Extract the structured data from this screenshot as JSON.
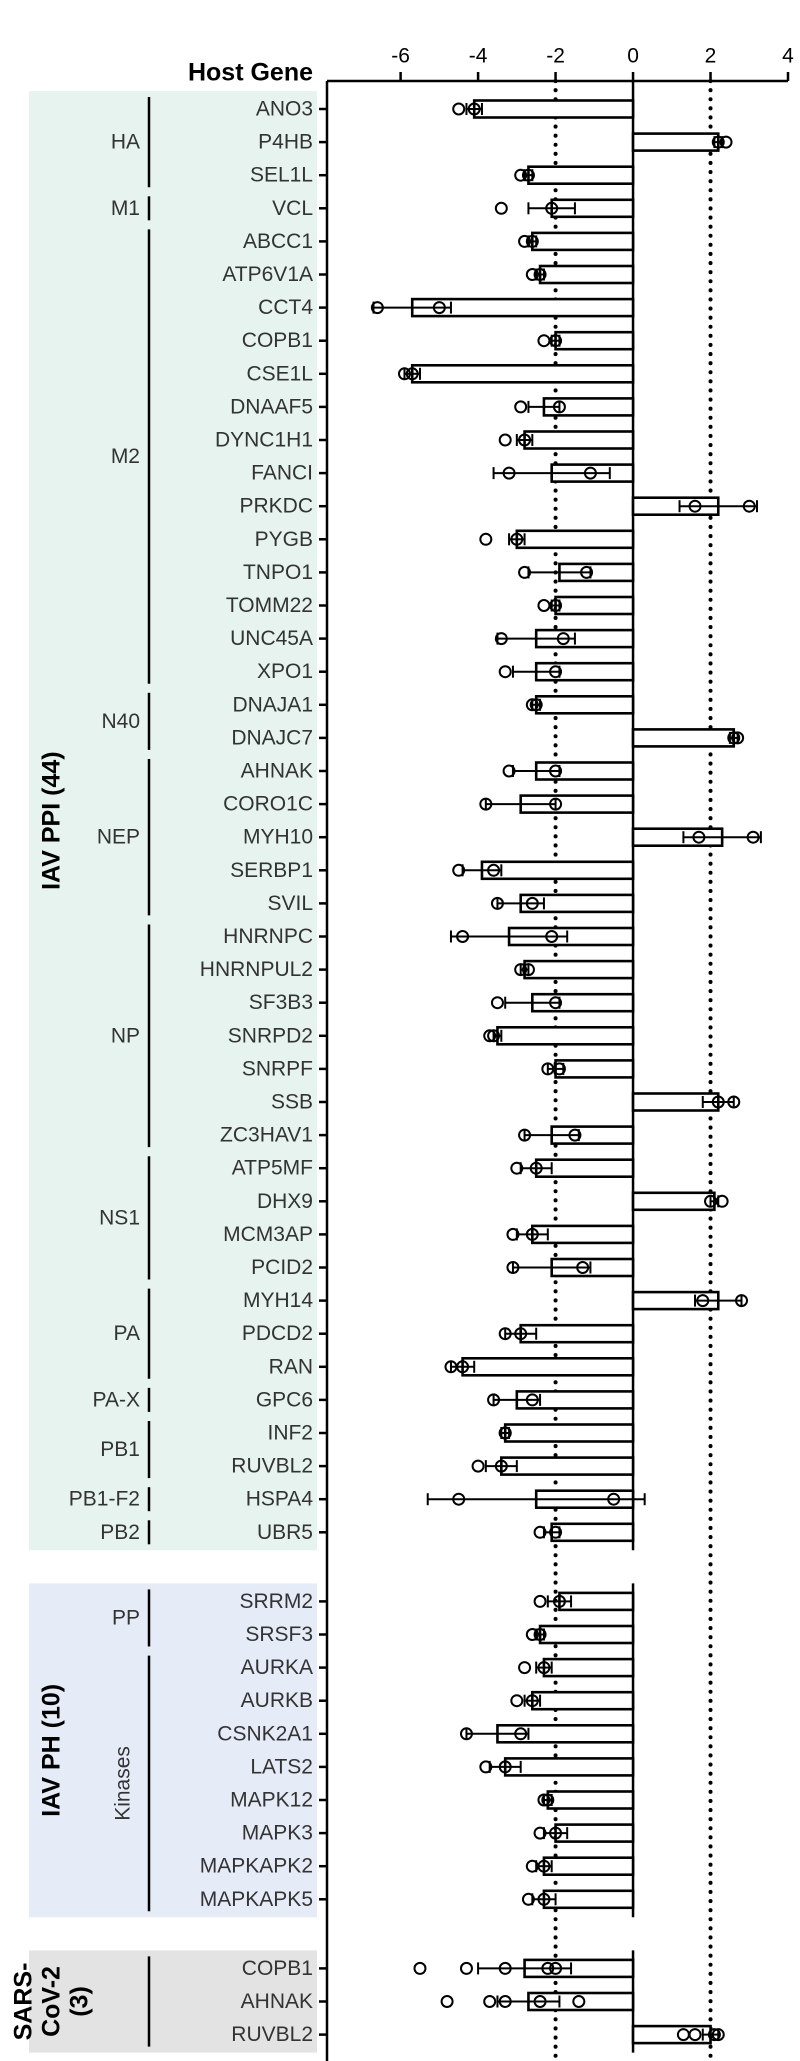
{
  "chart_data": {
    "type": "grouped-hbar",
    "y_label": "Host Gene",
    "xlim": [
      -7.9,
      4
    ],
    "xticks": [
      -6,
      -4,
      -2,
      0,
      2,
      4
    ],
    "reference_lines": [
      -2,
      2
    ],
    "bar_color": "#ffffff",
    "stroke_color": "#000000",
    "sections": [
      {
        "label_lines": [
          "IAV PPI (44)"
        ],
        "color": "#e6f3ee",
        "groups": [
          {
            "label": "HA",
            "genes": [
              {
                "name": "ANO3",
                "value": -4.1,
                "error": 0.2,
                "points": [
                  -4.5,
                  -4.1
                ]
              },
              {
                "name": "P4HB",
                "value": 2.2,
                "error": 0.1,
                "points": [
                  2.2,
                  2.4
                ]
              },
              {
                "name": "SEL1L",
                "value": -2.7,
                "error": 0.1,
                "points": [
                  -2.9,
                  -2.7
                ]
              }
            ]
          },
          {
            "label": "M1",
            "genes": [
              {
                "name": "VCL",
                "value": -2.1,
                "error": 0.6,
                "points": [
                  -3.4,
                  -2.1
                ]
              }
            ]
          },
          {
            "label": "M2",
            "genes": [
              {
                "name": "ABCC1",
                "value": -2.6,
                "error": 0.1,
                "points": [
                  -2.8,
                  -2.6
                ]
              },
              {
                "name": "ATP6V1A",
                "value": -2.4,
                "error": 0.1,
                "points": [
                  -2.6,
                  -2.4
                ]
              },
              {
                "name": "CCT4",
                "value": -5.7,
                "error": 1.0,
                "points": [
                  -6.6,
                  -5.0
                ]
              },
              {
                "name": "COPB1",
                "value": -2.0,
                "error": 0.1,
                "points": [
                  -2.3,
                  -2.0
                ]
              },
              {
                "name": "CSE1L",
                "value": -5.7,
                "error": 0.2,
                "points": [
                  -5.9,
                  -5.7
                ]
              },
              {
                "name": "DNAAF5",
                "value": -2.3,
                "error": 0.4,
                "points": [
                  -2.9,
                  -1.9
                ]
              },
              {
                "name": "DYNC1H1",
                "value": -2.8,
                "error": 0.2,
                "points": [
                  -3.3,
                  -2.8
                ]
              },
              {
                "name": "FANCI",
                "value": -2.1,
                "error": 1.5,
                "points": [
                  -3.2,
                  -1.1
                ]
              },
              {
                "name": "PRKDC",
                "value": 2.2,
                "error": 1.0,
                "points": [
                  1.6,
                  3.0
                ]
              },
              {
                "name": "PYGB",
                "value": -3.0,
                "error": 0.2,
                "points": [
                  -3.8,
                  -3.0
                ]
              },
              {
                "name": "TNPO1",
                "value": -1.9,
                "error": 0.8,
                "points": [
                  -2.8,
                  -1.2
                ]
              },
              {
                "name": "TOMM22",
                "value": -2.0,
                "error": 0.1,
                "points": [
                  -2.3,
                  -2.0
                ]
              },
              {
                "name": "UNC45A",
                "value": -2.5,
                "error": 1.0,
                "points": [
                  -3.4,
                  -1.8
                ]
              },
              {
                "name": "XPO1",
                "value": -2.5,
                "error": 0.6,
                "points": [
                  -3.3,
                  -2.0
                ]
              }
            ]
          },
          {
            "label": "N40",
            "genes": [
              {
                "name": "DNAJA1",
                "value": -2.5,
                "error": 0.1,
                "points": [
                  -2.6,
                  -2.5
                ]
              },
              {
                "name": "DNAJC7",
                "value": 2.6,
                "error": 0.1,
                "points": [
                  2.6,
                  2.7
                ]
              }
            ]
          },
          {
            "label": "NEP",
            "genes": [
              {
                "name": "AHNAK",
                "value": -2.5,
                "error": 0.6,
                "points": [
                  -3.2,
                  -2.0
                ]
              },
              {
                "name": "CORO1C",
                "value": -2.9,
                "error": 0.9,
                "points": [
                  -3.8,
                  -2.0
                ]
              },
              {
                "name": "MYH10",
                "value": 2.3,
                "error": 1.0,
                "points": [
                  1.7,
                  3.1
                ]
              },
              {
                "name": "SERBP1",
                "value": -3.9,
                "error": 0.5,
                "points": [
                  -4.5,
                  -3.6
                ]
              },
              {
                "name": "SVIL",
                "value": -2.9,
                "error": 0.6,
                "points": [
                  -3.5,
                  -2.6
                ]
              }
            ]
          },
          {
            "label": "NP",
            "genes": [
              {
                "name": "HNRNPC",
                "value": -3.2,
                "error": 1.5,
                "points": [
                  -4.4,
                  -2.1
                ]
              },
              {
                "name": "HNRNPUL2",
                "value": -2.8,
                "error": 0.1,
                "points": [
                  -2.9,
                  -2.7
                ]
              },
              {
                "name": "SF3B3",
                "value": -2.6,
                "error": 0.7,
                "points": [
                  -3.5,
                  -2.0
                ]
              },
              {
                "name": "SNRPD2",
                "value": -3.5,
                "error": 0.1,
                "points": [
                  -3.7,
                  -3.6
                ]
              },
              {
                "name": "SNRPF",
                "value": -2.0,
                "error": 0.2,
                "points": [
                  -2.2,
                  -1.9
                ]
              },
              {
                "name": "SSB",
                "value": 2.2,
                "error": 0.4,
                "points": [
                  2.2,
                  2.6
                ]
              },
              {
                "name": "ZC3HAV1",
                "value": -2.1,
                "error": 0.7,
                "points": [
                  -2.8,
                  -1.5
                ]
              }
            ]
          },
          {
            "label": "NS1",
            "genes": [
              {
                "name": "ATP5MF",
                "value": -2.5,
                "error": 0.4,
                "points": [
                  -3.0,
                  -2.5
                ]
              },
              {
                "name": "DHX9",
                "value": 2.1,
                "error": 0.1,
                "points": [
                  2.0,
                  2.3
                ]
              },
              {
                "name": "MCM3AP",
                "value": -2.6,
                "error": 0.4,
                "points": [
                  -3.1,
                  -2.6
                ]
              },
              {
                "name": "PCID2",
                "value": -2.1,
                "error": 1.0,
                "points": [
                  -3.1,
                  -1.3
                ]
              }
            ]
          },
          {
            "label": "PA",
            "genes": [
              {
                "name": "MYH14",
                "value": 2.2,
                "error": 0.6,
                "points": [
                  1.8,
                  2.8
                ]
              },
              {
                "name": "PDCD2",
                "value": -2.9,
                "error": 0.4,
                "points": [
                  -3.3,
                  -2.9
                ]
              },
              {
                "name": "RAN",
                "value": -4.4,
                "error": 0.3,
                "points": [
                  -4.7,
                  -4.4
                ]
              }
            ]
          },
          {
            "label": "PA-X",
            "genes": [
              {
                "name": "GPC6",
                "value": -3.0,
                "error": 0.6,
                "points": [
                  -3.6,
                  -2.6
                ]
              }
            ]
          },
          {
            "label": "PB1",
            "genes": [
              {
                "name": "INF2",
                "value": -3.3,
                "error": 0.1,
                "points": [
                  -3.3,
                  -3.3
                ]
              },
              {
                "name": "RUVBL2",
                "value": -3.4,
                "error": 0.4,
                "points": [
                  -4.0,
                  -3.4
                ]
              }
            ]
          },
          {
            "label": "PB1-F2",
            "genes": [
              {
                "name": "HSPA4",
                "value": -2.5,
                "error": 2.8,
                "points": [
                  -4.5,
                  -0.5
                ]
              }
            ]
          },
          {
            "label": "PB2",
            "genes": [
              {
                "name": "UBR5",
                "value": -2.1,
                "error": 0.2,
                "points": [
                  -2.4,
                  -2.0
                ]
              }
            ]
          }
        ]
      },
      {
        "label_lines": [
          "IAV PH (10)"
        ],
        "color": "#e6ebf8",
        "groups": [
          {
            "label": "PP",
            "genes": [
              {
                "name": "SRRM2",
                "value": -1.9,
                "error": 0.3,
                "points": [
                  -2.4,
                  -1.9
                ]
              },
              {
                "name": "SRSF3",
                "value": -2.4,
                "error": 0.1,
                "points": [
                  -2.6,
                  -2.4
                ]
              }
            ]
          },
          {
            "label": "Kinases",
            "label_rotated": true,
            "genes": [
              {
                "name": "AURKA",
                "value": -2.3,
                "error": 0.2,
                "points": [
                  -2.8,
                  -2.3
                ]
              },
              {
                "name": "AURKB",
                "value": -2.6,
                "error": 0.2,
                "points": [
                  -3.0,
                  -2.6
                ]
              },
              {
                "name": "CSNK2A1",
                "value": -3.5,
                "error": 0.8,
                "points": [
                  -4.3,
                  -2.9
                ]
              },
              {
                "name": "LATS2",
                "value": -3.3,
                "error": 0.4,
                "points": [
                  -3.8,
                  -3.3
                ]
              },
              {
                "name": "MAPK12",
                "value": -2.2,
                "error": 0.1,
                "points": [
                  -2.3,
                  -2.2
                ]
              },
              {
                "name": "MAPK3",
                "value": -2.0,
                "error": 0.3,
                "points": [
                  -2.4,
                  -2.0
                ]
              },
              {
                "name": "MAPKAPK2",
                "value": -2.3,
                "error": 0.2,
                "points": [
                  -2.6,
                  -2.3
                ]
              },
              {
                "name": "MAPKAPK5",
                "value": -2.3,
                "error": 0.3,
                "points": [
                  -2.7,
                  -2.3
                ]
              }
            ]
          }
        ]
      },
      {
        "label_lines": [
          "SARS-",
          "CoV-2",
          "(3)"
        ],
        "color": "#e3e3e3",
        "groups": [
          {
            "genes": [
              {
                "name": "COPB1",
                "value": -2.8,
                "error": 1.2,
                "points": [
                  -5.5,
                  -4.3,
                  -3.3,
                  -2.2,
                  -2.0
                ]
              },
              {
                "name": "AHNAK",
                "value": -2.7,
                "error": 0.8,
                "points": [
                  -4.8,
                  -3.7,
                  -3.3,
                  -2.4,
                  -1.4
                ]
              },
              {
                "name": "RUVBL2",
                "value": 2.0,
                "error": 0.2,
                "points": [
                  1.3,
                  1.6,
                  2.1,
                  2.2
                ]
              }
            ]
          }
        ]
      }
    ]
  }
}
